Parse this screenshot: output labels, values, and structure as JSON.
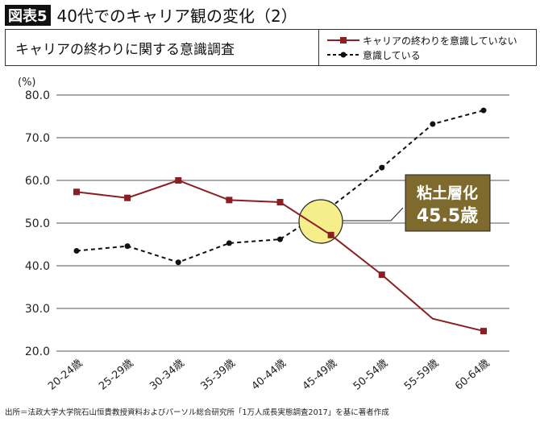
{
  "figure_label": "図表5",
  "title": "40代でのキャリア観の変化（2）",
  "subtitle": "キャリアの終わりに関する意識調査",
  "source": "出所＝法政大学大学院石山恒貴教授資料およびパーソル総合研究所「1万人成長実態調査2017」を基に著者作成",
  "annotation": {
    "line1": "粘土層化",
    "line2": "45.5歳"
  },
  "colors": {
    "series1": "#8b1e22",
    "series2": "#111111",
    "highlight": "#f5ee8a",
    "box": "#7d6a2c"
  },
  "chart_data": {
    "type": "line",
    "ylabel": "(%)",
    "ylim": [
      20,
      80
    ],
    "yticks": [
      "80.0",
      "70.0",
      "60.0",
      "50.0",
      "40.0",
      "30.0",
      "20.0"
    ],
    "grid": true,
    "legend": "top-right",
    "categories": [
      "20-24歳",
      "25-29歳",
      "30-34歳",
      "35-39歳",
      "40-44歳",
      "45-49歳",
      "50-54歳",
      "55-59歳",
      "60-64歳"
    ],
    "series": [
      {
        "name": "キャリアの終わりを意識していない",
        "style": "solid-square",
        "values": [
          57.3,
          55.9,
          60.0,
          55.4,
          54.9,
          47.2,
          37.9,
          27.6,
          24.7
        ]
      },
      {
        "name": "意識している",
        "style": "dashed-circle",
        "values": [
          43.5,
          44.6,
          40.8,
          45.3,
          46.2,
          53.8,
          63.0,
          73.2,
          76.4
        ]
      }
    ]
  }
}
